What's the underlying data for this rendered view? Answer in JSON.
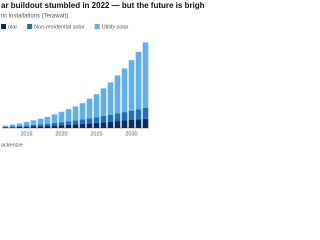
{
  "chart_data": {
    "type": "stacked-bar",
    "title": "ar buildout stumbled in 2022 — but the future is brigh",
    "subtitle": "tic installations (Terawatt)",
    "source": "ackenzie",
    "categories": [
      null,
      null,
      null,
      "2015",
      null,
      null,
      null,
      null,
      "2020",
      null,
      null,
      null,
      null,
      "2025",
      null,
      null,
      null,
      null,
      "2030",
      null,
      null
    ],
    "series": [
      {
        "name": "olar",
        "color": "#0b2d5b",
        "values": [
          0.005,
          0.007,
          0.009,
          0.011,
          0.013,
          0.015,
          0.018,
          0.021,
          0.025,
          0.029,
          0.033,
          0.037,
          0.041,
          0.045,
          0.05,
          0.055,
          0.06,
          0.065,
          0.07,
          0.075,
          0.08
        ]
      },
      {
        "name": "Non-residential solar",
        "color": "#1f6fbf",
        "values": [
          0.006,
          0.008,
          0.01,
          0.012,
          0.014,
          0.016,
          0.019,
          0.022,
          0.026,
          0.03,
          0.034,
          0.039,
          0.044,
          0.049,
          0.055,
          0.061,
          0.067,
          0.073,
          0.08,
          0.087,
          0.094
        ]
      },
      {
        "name": "Utility solar",
        "color": "#5fb0ec",
        "values": [
          0.01,
          0.015,
          0.02,
          0.03,
          0.04,
          0.05,
          0.06,
          0.075,
          0.09,
          0.105,
          0.12,
          0.14,
          0.17,
          0.2,
          0.24,
          0.28,
          0.33,
          0.38,
          0.44,
          0.5,
          0.57
        ]
      }
    ],
    "ylim": [
      0,
      0.8
    ]
  }
}
